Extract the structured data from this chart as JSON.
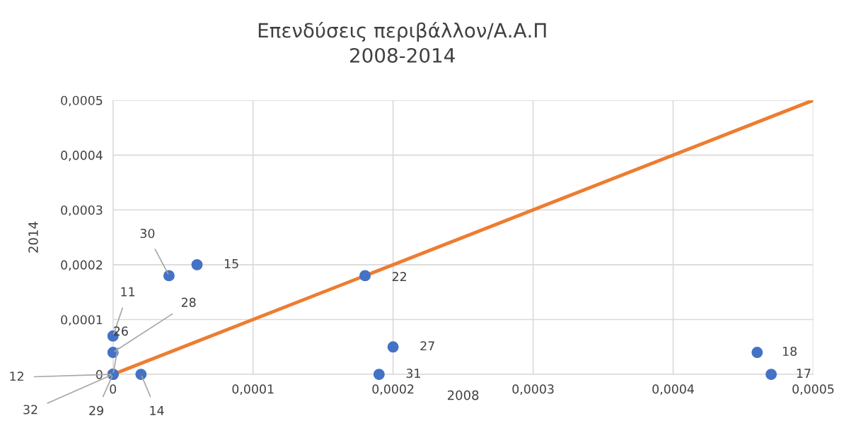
{
  "chart_data": {
    "type": "scatter",
    "title": "Επενδύσεις περιβάλλον/Α.Α.Π",
    "subtitle": "2008-2014",
    "xlabel": "2008",
    "ylabel": "2014",
    "series": [
      {
        "color": "#4472c4",
        "marker": "circle",
        "x": [
          4e-05,
          6e-05,
          0.00018,
          0,
          0,
          0,
          0,
          0,
          0,
          2e-05,
          0.0002,
          0.00019,
          0.00046,
          0.00047
        ],
        "values": [
          0.00018,
          0.0002,
          0.00018,
          7e-05,
          4e-05,
          0,
          0,
          0,
          0,
          0,
          5e-05,
          0,
          4e-05,
          0
        ]
      },
      {
        "type": "line",
        "color": "#ed7d31",
        "x": [
          0,
          0.0005
        ],
        "values": [
          0,
          0.0005
        ]
      }
    ],
    "annotations": [
      {
        "text": "30",
        "x": 4e-05,
        "y": 0.00018
      },
      {
        "text": "15",
        "x": 6e-05,
        "y": 0.0002
      },
      {
        "text": "22",
        "x": 0.00018,
        "y": 0.00018
      },
      {
        "text": "11",
        "x": 0,
        "y": 7e-05
      },
      {
        "text": "28",
        "x": 0,
        "y": 4e-05
      },
      {
        "text": "26",
        "x": 0,
        "y": 0
      },
      {
        "text": "12",
        "x": 0,
        "y": 0
      },
      {
        "text": "32",
        "x": 0,
        "y": 0
      },
      {
        "text": "29",
        "x": 0,
        "y": 0
      },
      {
        "text": "14",
        "x": 2e-05,
        "y": 0
      },
      {
        "text": "27",
        "x": 0.0002,
        "y": 5e-05
      },
      {
        "text": "31",
        "x": 0.00019,
        "y": 0
      },
      {
        "text": "18",
        "x": 0.00046,
        "y": 4e-05
      },
      {
        "text": "17",
        "x": 0.00047,
        "y": 0
      }
    ],
    "xlim": [
      0,
      0.0005
    ],
    "ylim": [
      0,
      0.0005
    ],
    "xticks": [
      0,
      {
        "value": 0.0001,
        "label": "0,0001"
      },
      {
        "value": 0.0002,
        "label": "0,0002"
      },
      {
        "value": 0.0003,
        "label": "0,0003"
      },
      {
        "value": 0.0004,
        "label": "0,0004"
      },
      {
        "value": 0.0005,
        "label": "0,0005"
      }
    ],
    "yticks": [
      0,
      {
        "value": 0.0001,
        "label": "0,0001"
      },
      {
        "value": 0.0002,
        "label": "0,0002"
      },
      {
        "value": 0.0003,
        "label": "0,0003"
      },
      {
        "value": 0.0004,
        "label": "0,0004"
      },
      {
        "value": 0.0005,
        "label": "0,0005"
      }
    ],
    "grid": true,
    "legend": false
  }
}
